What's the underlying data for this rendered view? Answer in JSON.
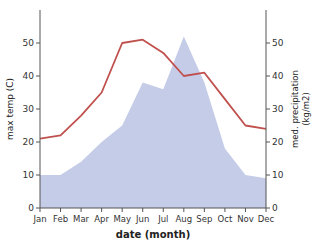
{
  "chart_data": {
    "type": "line",
    "xlabel": "date (month)",
    "ylabel": "max temp (C)",
    "y2label": "med. precipitation\n(kg/m2)",
    "categories": [
      "Jan",
      "Feb",
      "Mar",
      "Apr",
      "May",
      "Jun",
      "Jul",
      "Aug",
      "Sep",
      "Oct",
      "Nov",
      "Dec"
    ],
    "series": [
      {
        "type": "line",
        "color": "#c0504d",
        "values": [
          21,
          22,
          28,
          35,
          50,
          51,
          47,
          40,
          41,
          33,
          25,
          24
        ]
      },
      {
        "type": "area",
        "color": "#c5cce8",
        "axis": "y2",
        "values": [
          10,
          10,
          14,
          20,
          25,
          38,
          36,
          52,
          38,
          18,
          10,
          9
        ]
      }
    ],
    "ylim": [
      0,
      60
    ],
    "yticks": [
      0,
      10,
      20,
      30,
      40,
      50
    ],
    "y2lim": [
      0,
      60
    ],
    "y2ticks": [
      0,
      10,
      20,
      30,
      40,
      50
    ]
  }
}
